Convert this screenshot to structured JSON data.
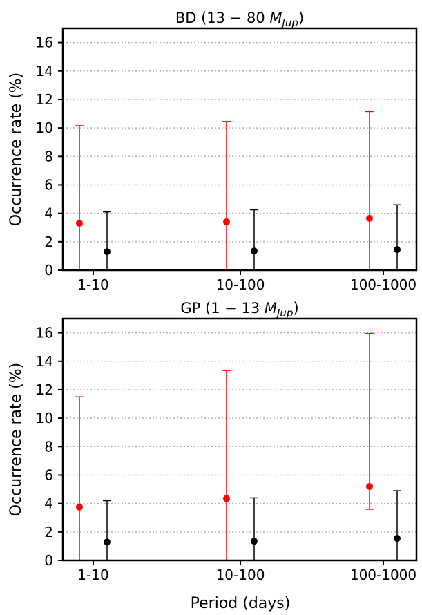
{
  "xlabel": "Period (days)",
  "chart_data": [
    {
      "type": "scatter",
      "title_prefix": "BD (13 − 80 ",
      "title_mass": "M",
      "title_sub": "Jup",
      "title_suffix": ")",
      "ylabel": "Occurrence rate (%)",
      "ylim": [
        0,
        17
      ],
      "yticks": [
        0,
        2,
        4,
        6,
        8,
        10,
        12,
        14,
        16
      ],
      "grid": "horizontal dotted",
      "categories": [
        "1-10",
        "10-100",
        "100-1000"
      ],
      "series": [
        {
          "color": "#ff0000",
          "offset": "left",
          "values": [
            3.3,
            3.4,
            3.65
          ],
          "lower": [
            0,
            0,
            0
          ],
          "upper": [
            10.15,
            10.45,
            11.15
          ]
        },
        {
          "color": "#000000",
          "offset": "right",
          "values": [
            1.3,
            1.35,
            1.45
          ],
          "lower": [
            0,
            0,
            0
          ],
          "upper": [
            4.1,
            4.25,
            4.6
          ]
        }
      ]
    },
    {
      "type": "scatter",
      "title_prefix": "GP (1 − 13 ",
      "title_mass": "M",
      "title_sub": "Jup",
      "title_suffix": ")",
      "ylabel": "Occurrence rate (%)",
      "ylim": [
        0,
        17
      ],
      "yticks": [
        0,
        2,
        4,
        6,
        8,
        10,
        12,
        14,
        16
      ],
      "grid": "horizontal dotted",
      "categories": [
        "1-10",
        "10-100",
        "100-1000"
      ],
      "series": [
        {
          "color": "#ff0000",
          "offset": "left",
          "values": [
            3.75,
            4.35,
            5.2
          ],
          "lower": [
            0,
            0,
            3.6
          ],
          "upper": [
            11.5,
            13.35,
            15.95
          ]
        },
        {
          "color": "#000000",
          "offset": "right",
          "values": [
            1.3,
            1.35,
            1.55
          ],
          "lower": [
            0,
            0,
            0
          ],
          "upper": [
            4.2,
            4.4,
            4.9
          ]
        }
      ]
    }
  ]
}
